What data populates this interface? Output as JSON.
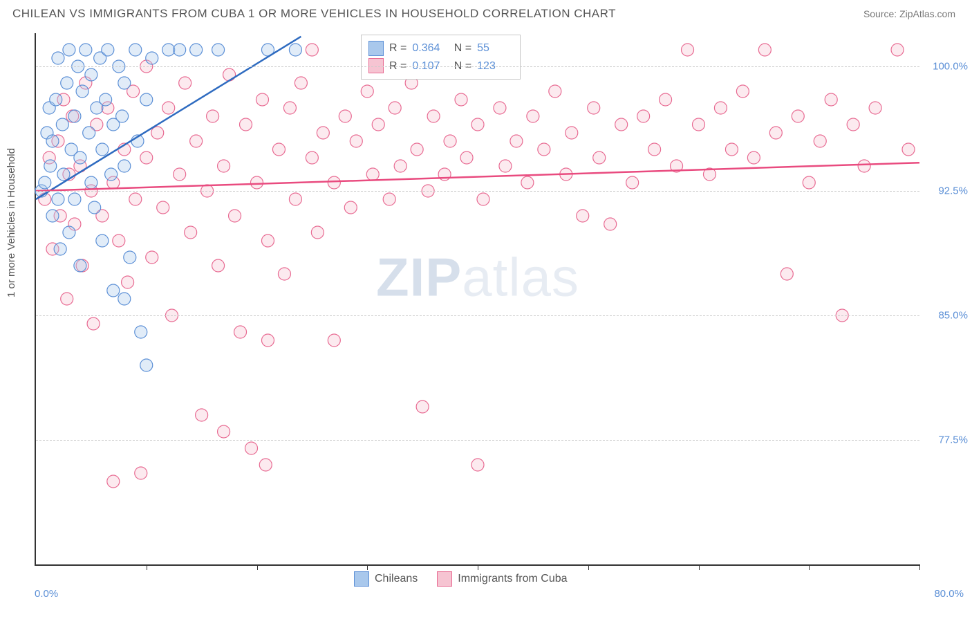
{
  "header": {
    "title": "CHILEAN VS IMMIGRANTS FROM CUBA 1 OR MORE VEHICLES IN HOUSEHOLD CORRELATION CHART",
    "source": "Source: ZipAtlas.com"
  },
  "chart": {
    "type": "scatter",
    "ylabel": "1 or more Vehicles in Household",
    "xlim": [
      0,
      80
    ],
    "ylim": [
      70,
      102
    ],
    "xtick_positions": [
      0,
      10,
      20,
      30,
      40,
      50,
      60,
      70,
      80
    ],
    "xtick_labels_shown": {
      "0": "0.0%",
      "80": "80.0%"
    },
    "ytick_positions": [
      77.5,
      85.0,
      92.5,
      100.0
    ],
    "ytick_labels": [
      "77.5%",
      "85.0%",
      "92.5%",
      "100.0%"
    ],
    "background_color": "#ffffff",
    "grid_color": "#cccccc",
    "axis_color": "#333333",
    "tick_label_color": "#5b8fd6",
    "marker_radius": 9,
    "marker_opacity": 0.35,
    "watermark": "ZIPatlas",
    "series": [
      {
        "name": "Chileans",
        "fill": "#a9c8ec",
        "stroke": "#5b8fd6",
        "line_color": "#2e6bc0",
        "R": "0.364",
        "N": "55",
        "trend": {
          "x1": 0,
          "y1": 92.0,
          "x2": 24,
          "y2": 101.8
        },
        "points": [
          [
            0.5,
            92.5
          ],
          [
            0.8,
            93.0
          ],
          [
            1.0,
            96.0
          ],
          [
            1.2,
            97.5
          ],
          [
            1.3,
            94.0
          ],
          [
            1.5,
            91.0
          ],
          [
            1.5,
            95.5
          ],
          [
            1.8,
            98.0
          ],
          [
            2.0,
            100.5
          ],
          [
            2.0,
            92.0
          ],
          [
            2.2,
            89.0
          ],
          [
            2.4,
            96.5
          ],
          [
            2.5,
            93.5
          ],
          [
            2.8,
            99.0
          ],
          [
            3.0,
            101.0
          ],
          [
            3.0,
            90.0
          ],
          [
            3.2,
            95.0
          ],
          [
            3.5,
            97.0
          ],
          [
            3.5,
            92.0
          ],
          [
            3.8,
            100.0
          ],
          [
            4.0,
            94.5
          ],
          [
            4.0,
            88.0
          ],
          [
            4.2,
            98.5
          ],
          [
            4.5,
            101.0
          ],
          [
            4.8,
            96.0
          ],
          [
            5.0,
            93.0
          ],
          [
            5.0,
            99.5
          ],
          [
            5.3,
            91.5
          ],
          [
            5.5,
            97.5
          ],
          [
            5.8,
            100.5
          ],
          [
            6.0,
            95.0
          ],
          [
            6.0,
            89.5
          ],
          [
            6.3,
            98.0
          ],
          [
            6.5,
            101.0
          ],
          [
            6.8,
            93.5
          ],
          [
            7.0,
            96.5
          ],
          [
            7.0,
            86.5
          ],
          [
            7.5,
            100.0
          ],
          [
            7.8,
            97.0
          ],
          [
            8.0,
            94.0
          ],
          [
            8.0,
            99.0
          ],
          [
            8.5,
            88.5
          ],
          [
            9.0,
            101.0
          ],
          [
            9.2,
            95.5
          ],
          [
            9.5,
            84.0
          ],
          [
            10.0,
            98.0
          ],
          [
            10.0,
            82.0
          ],
          [
            10.5,
            100.5
          ],
          [
            12.0,
            101.0
          ],
          [
            13.0,
            101.0
          ],
          [
            14.5,
            101.0
          ],
          [
            16.5,
            101.0
          ],
          [
            21.0,
            101.0
          ],
          [
            23.5,
            101.0
          ],
          [
            8.0,
            86.0
          ]
        ]
      },
      {
        "name": "Immigrants from Cuba",
        "fill": "#f6c4d2",
        "stroke": "#e86a92",
        "line_color": "#e94b7f",
        "R": "0.107",
        "N": "123",
        "trend": {
          "x1": 0,
          "y1": 92.5,
          "x2": 80,
          "y2": 94.2
        },
        "points": [
          [
            0.8,
            92.0
          ],
          [
            1.2,
            94.5
          ],
          [
            1.5,
            89.0
          ],
          [
            2.0,
            95.5
          ],
          [
            2.2,
            91.0
          ],
          [
            2.5,
            98.0
          ],
          [
            2.8,
            86.0
          ],
          [
            3.0,
            93.5
          ],
          [
            3.3,
            97.0
          ],
          [
            3.5,
            90.5
          ],
          [
            4.0,
            94.0
          ],
          [
            4.2,
            88.0
          ],
          [
            4.5,
            99.0
          ],
          [
            5.0,
            92.5
          ],
          [
            5.2,
            84.5
          ],
          [
            5.5,
            96.5
          ],
          [
            6.0,
            91.0
          ],
          [
            6.5,
            97.5
          ],
          [
            7.0,
            93.0
          ],
          [
            7.0,
            75.0
          ],
          [
            7.5,
            89.5
          ],
          [
            8.0,
            95.0
          ],
          [
            8.3,
            87.0
          ],
          [
            8.8,
            98.5
          ],
          [
            9.0,
            92.0
          ],
          [
            9.5,
            75.5
          ],
          [
            10.0,
            94.5
          ],
          [
            10.0,
            100.0
          ],
          [
            10.5,
            88.5
          ],
          [
            11.0,
            96.0
          ],
          [
            11.5,
            91.5
          ],
          [
            12.0,
            97.5
          ],
          [
            12.3,
            85.0
          ],
          [
            13.0,
            93.5
          ],
          [
            13.5,
            99.0
          ],
          [
            14.0,
            90.0
          ],
          [
            14.5,
            95.5
          ],
          [
            15.0,
            79.0
          ],
          [
            15.5,
            92.5
          ],
          [
            16.0,
            97.0
          ],
          [
            16.5,
            88.0
          ],
          [
            17.0,
            94.0
          ],
          [
            17.0,
            78.0
          ],
          [
            17.5,
            99.5
          ],
          [
            18.0,
            91.0
          ],
          [
            18.5,
            84.0
          ],
          [
            19.0,
            96.5
          ],
          [
            19.5,
            77.0
          ],
          [
            20.0,
            93.0
          ],
          [
            20.5,
            98.0
          ],
          [
            20.8,
            76.0
          ],
          [
            21.0,
            89.5
          ],
          [
            21.0,
            83.5
          ],
          [
            22.0,
            95.0
          ],
          [
            22.5,
            87.5
          ],
          [
            23.0,
            97.5
          ],
          [
            23.5,
            92.0
          ],
          [
            24.0,
            99.0
          ],
          [
            25.0,
            94.5
          ],
          [
            25.0,
            101.0
          ],
          [
            25.5,
            90.0
          ],
          [
            26.0,
            96.0
          ],
          [
            27.0,
            93.0
          ],
          [
            27.0,
            83.5
          ],
          [
            28.0,
            97.0
          ],
          [
            28.5,
            91.5
          ],
          [
            29.0,
            95.5
          ],
          [
            30.0,
            98.5
          ],
          [
            30.5,
            93.5
          ],
          [
            31.0,
            96.5
          ],
          [
            32.0,
            92.0
          ],
          [
            32.5,
            97.5
          ],
          [
            33.0,
            94.0
          ],
          [
            34.0,
            99.0
          ],
          [
            34.5,
            95.0
          ],
          [
            35.5,
            92.5
          ],
          [
            35.0,
            79.5
          ],
          [
            36.0,
            97.0
          ],
          [
            37.0,
            93.5
          ],
          [
            37.5,
            95.5
          ],
          [
            38.5,
            98.0
          ],
          [
            39.0,
            94.5
          ],
          [
            40.0,
            96.5
          ],
          [
            40.5,
            92.0
          ],
          [
            40.0,
            76.0
          ],
          [
            42.0,
            97.5
          ],
          [
            42.5,
            94.0
          ],
          [
            43.5,
            95.5
          ],
          [
            44.5,
            93.0
          ],
          [
            45.0,
            97.0
          ],
          [
            46.0,
            95.0
          ],
          [
            47.0,
            98.5
          ],
          [
            48.0,
            93.5
          ],
          [
            48.5,
            96.0
          ],
          [
            49.5,
            91.0
          ],
          [
            50.5,
            97.5
          ],
          [
            51.0,
            94.5
          ],
          [
            52.0,
            90.5
          ],
          [
            53.0,
            96.5
          ],
          [
            54.0,
            93.0
          ],
          [
            55.0,
            97.0
          ],
          [
            56.0,
            95.0
          ],
          [
            57.0,
            98.0
          ],
          [
            58.0,
            94.0
          ],
          [
            59.0,
            101.0
          ],
          [
            60.0,
            96.5
          ],
          [
            61.0,
            93.5
          ],
          [
            62.0,
            97.5
          ],
          [
            63.0,
            95.0
          ],
          [
            64.0,
            98.5
          ],
          [
            65.0,
            94.5
          ],
          [
            66.0,
            101.0
          ],
          [
            67.0,
            96.0
          ],
          [
            68.0,
            87.5
          ],
          [
            69.0,
            97.0
          ],
          [
            70.0,
            93.0
          ],
          [
            71.0,
            95.5
          ],
          [
            72.0,
            98.0
          ],
          [
            73.0,
            85.0
          ],
          [
            74.0,
            96.5
          ],
          [
            75.0,
            94.0
          ],
          [
            76.0,
            97.5
          ],
          [
            78.0,
            101.0
          ],
          [
            79.0,
            95.0
          ]
        ]
      }
    ],
    "legend": {
      "bottom_items": [
        "Chileans",
        "Immigrants from Cuba"
      ]
    }
  }
}
